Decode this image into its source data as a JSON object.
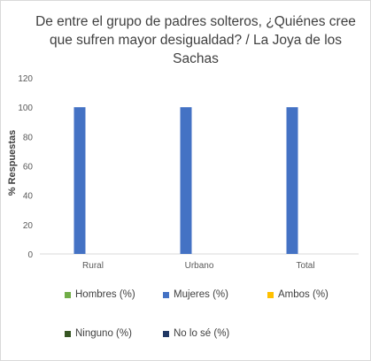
{
  "chart_data": {
    "type": "bar",
    "title": "De entre el grupo de padres solteros, ¿Quiénes cree que sufren mayor desigualdad? / La Joya de los Sachas",
    "title_lines": [
      "De entre el grupo de padres solteros, ¿Quiénes cree",
      "que sufren mayor desigualdad? / La Joya de los Sachas"
    ],
    "ylabel": "% Respuestas",
    "xlabel": "",
    "categories": [
      "Rural",
      "Urbano",
      "Total"
    ],
    "ylim": [
      0,
      120
    ],
    "yticks": [
      0,
      20,
      40,
      60,
      80,
      100,
      120
    ],
    "grid": false,
    "legend_position": "bottom",
    "series": [
      {
        "name": "Hombres (%)",
        "color": "#70ad47",
        "values": [
          0,
          0,
          0
        ]
      },
      {
        "name": "Mujeres (%)",
        "color": "#4472c4",
        "values": [
          100,
          100,
          100
        ]
      },
      {
        "name": "Ambos (%)",
        "color": "#ffc000",
        "values": [
          0,
          0,
          0
        ]
      },
      {
        "name": "Ninguno (%)",
        "color": "#375623",
        "values": [
          0,
          0,
          0
        ]
      },
      {
        "name": "No lo sé (%)",
        "color": "#203864",
        "values": [
          0,
          0,
          0
        ]
      }
    ]
  }
}
